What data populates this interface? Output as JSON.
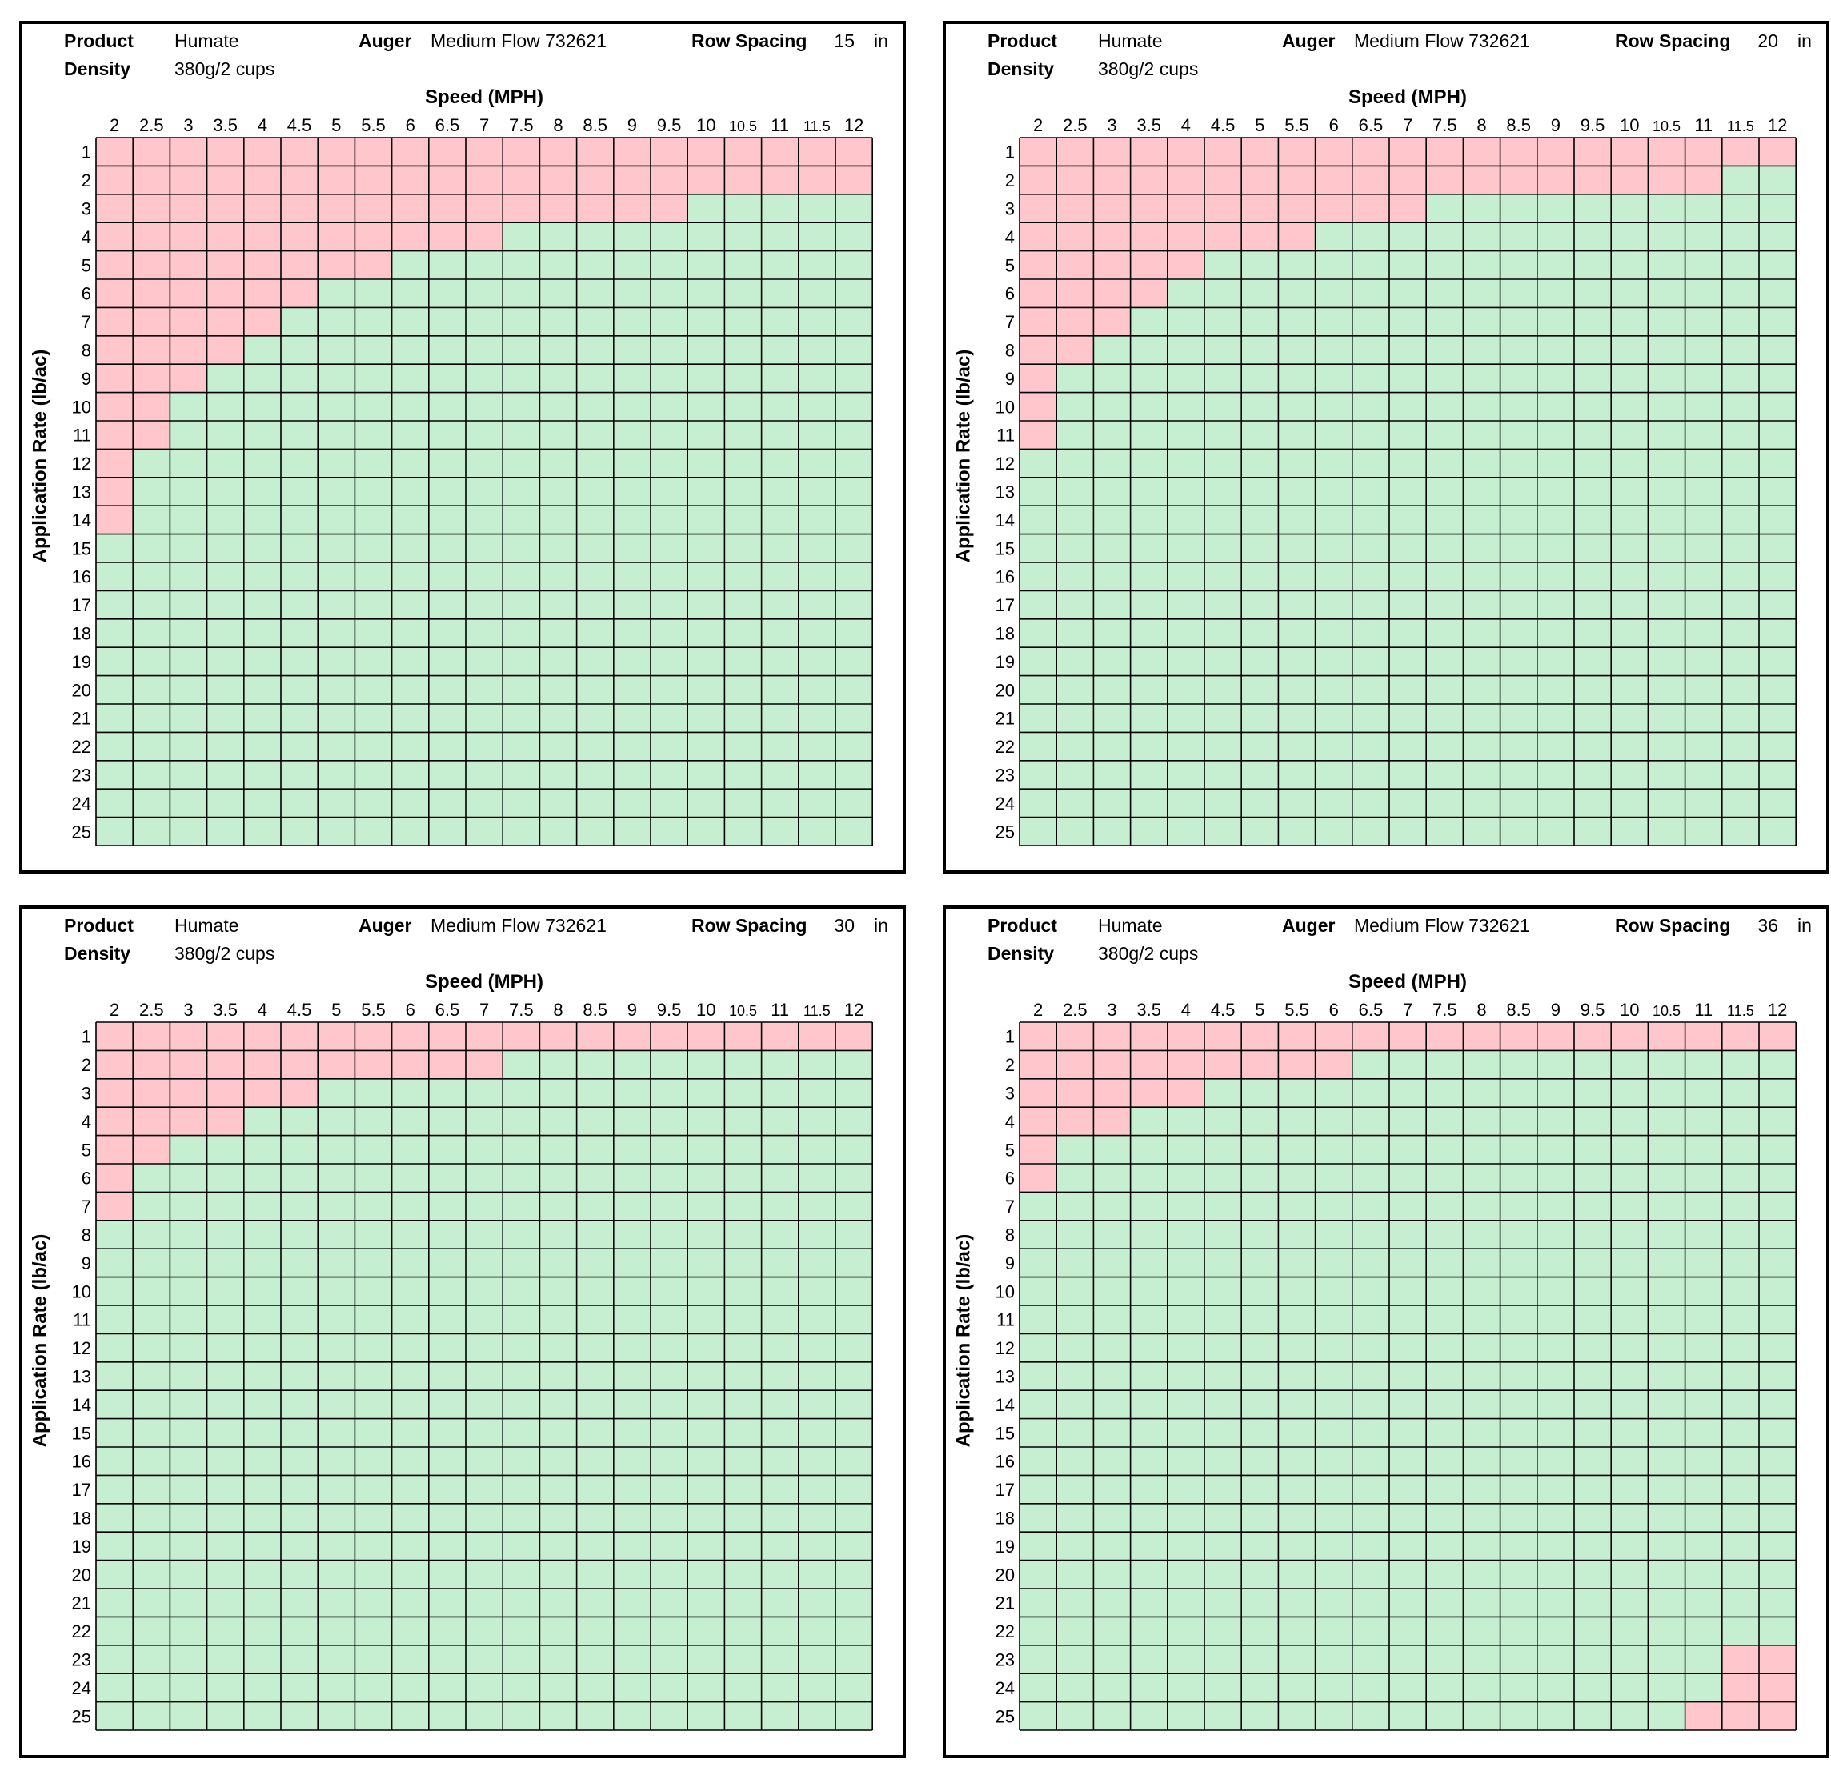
{
  "colors": {
    "exceeds": "#ffc6cc",
    "ok": "#c6eed0",
    "grid": "#000000"
  },
  "chart_data": [
    {
      "type": "heatmap",
      "product_label": "Product",
      "product": "Humate",
      "auger_label": "Auger",
      "auger": "Medium Flow 732621",
      "row_spacing_label": "Row Spacing",
      "row_spacing": "15",
      "row_spacing_unit": "in",
      "density_label": "Density",
      "density": "380g/2 cups",
      "xlabel": "Speed (MPH)",
      "ylabel": "Application Rate (lb/ac)",
      "x": [
        "2",
        "2.5",
        "3",
        "3.5",
        "4",
        "4.5",
        "5",
        "5.5",
        "6",
        "6.5",
        "7",
        "7.5",
        "8",
        "8.5",
        "9",
        "9.5",
        "10",
        "10.5",
        "11",
        "11.5",
        "12"
      ],
      "y": [
        "1",
        "2",
        "3",
        "4",
        "5",
        "6",
        "7",
        "8",
        "9",
        "10",
        "11",
        "12",
        "13",
        "14",
        "15",
        "16",
        "17",
        "18",
        "19",
        "20",
        "21",
        "22",
        "23",
        "24",
        "25"
      ],
      "exceeds_from_rate": [
        14,
        11,
        9,
        8,
        7,
        6,
        5,
        5,
        4,
        4,
        4,
        3,
        3,
        3,
        3,
        3,
        2,
        2,
        2,
        2,
        2
      ],
      "exceeds_to_rate": [
        25,
        25,
        25,
        25,
        25,
        25,
        25,
        25,
        25,
        25,
        25,
        25,
        25,
        25,
        25,
        25,
        25,
        25,
        25,
        25,
        25
      ]
    },
    {
      "type": "heatmap",
      "product_label": "Product",
      "product": "Humate",
      "auger_label": "Auger",
      "auger": "Medium Flow 732621",
      "row_spacing_label": "Row Spacing",
      "row_spacing": "20",
      "row_spacing_unit": "in",
      "density_label": "Density",
      "density": "380g/2 cups",
      "xlabel": "Speed (MPH)",
      "ylabel": "Application Rate (lb/ac)",
      "x": [
        "2",
        "2.5",
        "3",
        "3.5",
        "4",
        "4.5",
        "5",
        "5.5",
        "6",
        "6.5",
        "7",
        "7.5",
        "8",
        "8.5",
        "9",
        "9.5",
        "10",
        "10.5",
        "11",
        "11.5",
        "12"
      ],
      "y": [
        "1",
        "2",
        "3",
        "4",
        "5",
        "6",
        "7",
        "8",
        "9",
        "10",
        "11",
        "12",
        "13",
        "14",
        "15",
        "16",
        "17",
        "18",
        "19",
        "20",
        "21",
        "22",
        "23",
        "24",
        "25"
      ],
      "exceeds_from_rate": [
        11,
        8,
        7,
        6,
        5,
        4,
        4,
        4,
        3,
        3,
        3,
        2,
        2,
        2,
        2,
        2,
        2,
        2,
        2,
        1,
        1
      ],
      "exceeds_to_rate": [
        25,
        25,
        25,
        25,
        25,
        25,
        25,
        25,
        25,
        25,
        25,
        25,
        25,
        25,
        25,
        25,
        25,
        25,
        25,
        25,
        25
      ]
    },
    {
      "type": "heatmap",
      "product_label": "Product",
      "product": "Humate",
      "auger_label": "Auger",
      "auger": "Medium Flow 732621",
      "row_spacing_label": "Row Spacing",
      "row_spacing": "30",
      "row_spacing_unit": "in",
      "density_label": "Density",
      "density": "380g/2 cups",
      "xlabel": "Speed (MPH)",
      "ylabel": "Application Rate (lb/ac)",
      "x": [
        "2",
        "2.5",
        "3",
        "3.5",
        "4",
        "4.5",
        "5",
        "5.5",
        "6",
        "6.5",
        "7",
        "7.5",
        "8",
        "8.5",
        "9",
        "9.5",
        "10",
        "10.5",
        "11",
        "11.5",
        "12"
      ],
      "y": [
        "1",
        "2",
        "3",
        "4",
        "5",
        "6",
        "7",
        "8",
        "9",
        "10",
        "11",
        "12",
        "13",
        "14",
        "15",
        "16",
        "17",
        "18",
        "19",
        "20",
        "21",
        "22",
        "23",
        "24",
        "25"
      ],
      "exceeds_from_rate": [
        7,
        5,
        4,
        4,
        3,
        3,
        2,
        2,
        2,
        2,
        2,
        1,
        1,
        1,
        1,
        1,
        1,
        1,
        1,
        1,
        1
      ],
      "exceeds_to_rate": [
        25,
        25,
        25,
        25,
        25,
        25,
        25,
        25,
        25,
        25,
        25,
        25,
        25,
        25,
        25,
        25,
        25,
        25,
        25,
        25,
        25
      ]
    },
    {
      "type": "heatmap",
      "product_label": "Product",
      "product": "Humate",
      "auger_label": "Auger",
      "auger": "Medium Flow 732621",
      "row_spacing_label": "Row Spacing",
      "row_spacing": "36",
      "row_spacing_unit": "in",
      "density_label": "Density",
      "density": "380g/2 cups",
      "xlabel": "Speed (MPH)",
      "ylabel": "Application Rate (lb/ac)",
      "x": [
        "2",
        "2.5",
        "3",
        "3.5",
        "4",
        "4.5",
        "5",
        "5.5",
        "6",
        "6.5",
        "7",
        "7.5",
        "8",
        "8.5",
        "9",
        "9.5",
        "10",
        "10.5",
        "11",
        "11.5",
        "12"
      ],
      "y": [
        "1",
        "2",
        "3",
        "4",
        "5",
        "6",
        "7",
        "8",
        "9",
        "10",
        "11",
        "12",
        "13",
        "14",
        "15",
        "16",
        "17",
        "18",
        "19",
        "20",
        "21",
        "22",
        "23",
        "24",
        "25"
      ],
      "exceeds_from_rate": [
        6,
        4,
        4,
        3,
        3,
        2,
        2,
        2,
        2,
        1,
        1,
        1,
        1,
        1,
        1,
        1,
        1,
        1,
        1,
        1,
        1
      ],
      "exceeds_to_rate": [
        25,
        25,
        25,
        25,
        25,
        25,
        25,
        25,
        25,
        25,
        25,
        25,
        25,
        25,
        25,
        25,
        25,
        25,
        24,
        22,
        22
      ]
    }
  ]
}
